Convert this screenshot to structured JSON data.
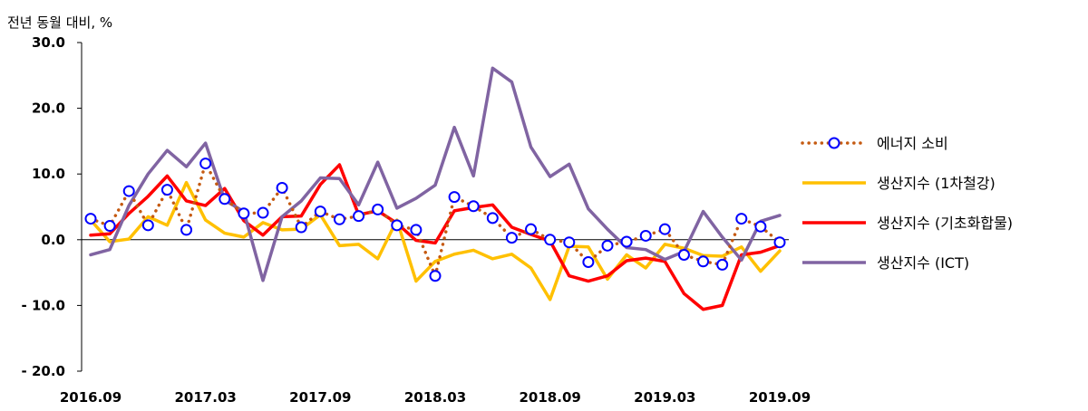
{
  "chart_data": {
    "type": "line",
    "unit_label": "전년 동월 대비, %",
    "ylim": [
      -20,
      30
    ],
    "y_ticks": [
      "30.0",
      "20.0",
      "10.0",
      "0.0",
      "- 10.0",
      "- 20.0"
    ],
    "y_tick_values": [
      30,
      20,
      10,
      0,
      -10,
      -20
    ],
    "x_tick_labels": [
      "2016.09",
      "2017.03",
      "2017.09",
      "2018.03",
      "2018.09",
      "2019.03",
      "2019.09"
    ],
    "x_tick_positions": [
      0,
      6,
      12,
      18,
      24,
      30,
      36
    ],
    "x": [
      "2016.09",
      "2016.10",
      "2016.11",
      "2016.12",
      "2017.01",
      "2017.02",
      "2017.03",
      "2017.04",
      "2017.05",
      "2017.06",
      "2017.07",
      "2017.08",
      "2017.09",
      "2017.10",
      "2017.11",
      "2017.12",
      "2018.01",
      "2018.02",
      "2018.03",
      "2018.04",
      "2018.05",
      "2018.06",
      "2018.07",
      "2018.08",
      "2018.09",
      "2018.10",
      "2018.11",
      "2018.12",
      "2019.01",
      "2019.02",
      "2019.03",
      "2019.04",
      "2019.05",
      "2019.06",
      "2019.07",
      "2019.08",
      "2019.09"
    ],
    "legend_position": "right",
    "series": [
      {
        "name": "에너지 소비",
        "color": "#C55A11",
        "marker_color": "#0000FF",
        "style": "dotted-circle",
        "values": [
          3.2,
          2.1,
          7.4,
          2.2,
          7.6,
          1.5,
          11.6,
          6.2,
          4.0,
          4.1,
          7.9,
          1.9,
          4.3,
          3.1,
          3.6,
          4.6,
          2.2,
          1.5,
          -5.5,
          6.5,
          5.1,
          3.3,
          0.3,
          1.6,
          0.0,
          -0.4,
          -3.4,
          -0.9,
          -0.3,
          0.6,
          1.6,
          -2.3,
          -3.3,
          -3.8,
          3.2,
          2.0,
          -0.4
        ]
      },
      {
        "name": "생산지수 (1차철강)",
        "color": "#FFC000",
        "style": "solid",
        "values": [
          3.0,
          -0.3,
          0.1,
          3.5,
          2.2,
          8.7,
          3.0,
          1.0,
          0.4,
          2.6,
          1.5,
          1.6,
          3.8,
          -0.9,
          -0.7,
          -2.9,
          3.0,
          -6.3,
          -3.3,
          -2.2,
          -1.6,
          -2.9,
          -2.2,
          -4.3,
          -9.1,
          -1.0,
          -1.1,
          -6.0,
          -2.3,
          -4.3,
          -0.7,
          -1.3,
          -2.4,
          -2.5,
          -1.1,
          -4.8,
          -1.7
        ]
      },
      {
        "name": "생산지수 (기초화합물)",
        "color": "#FF0000",
        "style": "solid",
        "values": [
          0.7,
          0.9,
          4.0,
          6.6,
          9.7,
          5.9,
          5.2,
          7.8,
          2.9,
          0.7,
          3.5,
          3.6,
          8.4,
          11.4,
          3.8,
          4.4,
          2.5,
          -0.1,
          -0.5,
          4.4,
          4.9,
          5.3,
          1.9,
          0.8,
          -0.2,
          -5.5,
          -6.3,
          -5.5,
          -3.2,
          -2.8,
          -3.3,
          -8.2,
          -10.6,
          -10.0,
          -2.3,
          -1.9,
          -0.9
        ]
      },
      {
        "name": "생산지수 (ICT)",
        "color": "#8064A2",
        "style": "solid",
        "values": [
          -2.3,
          -1.5,
          5.2,
          10.0,
          13.6,
          11.1,
          14.7,
          6.0,
          4.3,
          -6.2,
          3.5,
          5.9,
          9.4,
          9.3,
          5.3,
          11.8,
          4.8,
          6.3,
          8.3,
          17.1,
          9.7,
          26.1,
          24.0,
          14.1,
          9.6,
          11.5,
          4.7,
          1.6,
          -1.2,
          -1.5,
          -3.0,
          -1.8,
          4.3,
          0.4,
          -3.1,
          2.8,
          3.7
        ]
      }
    ]
  }
}
